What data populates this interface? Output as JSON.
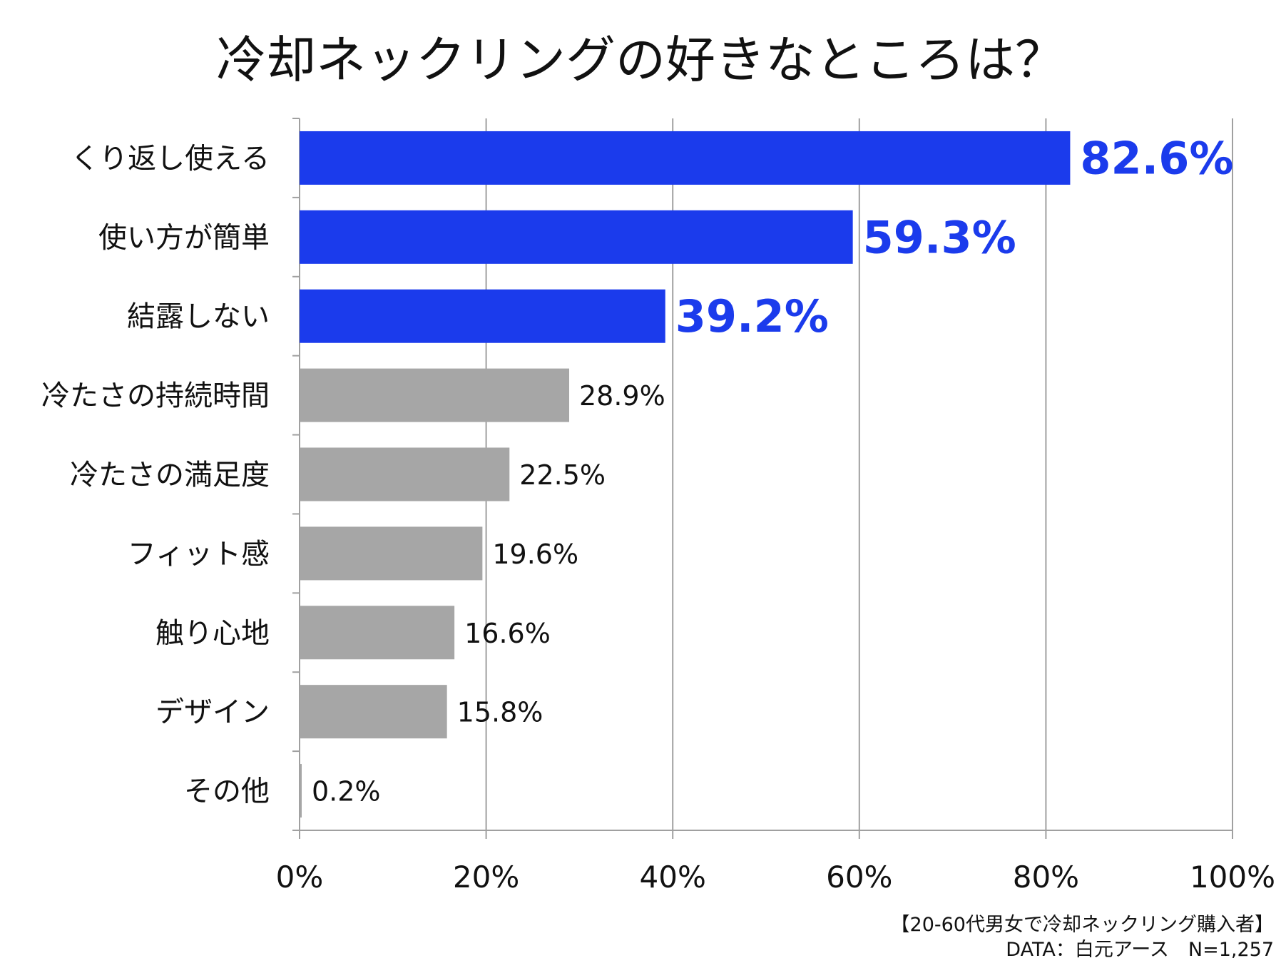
{
  "chart_data": {
    "type": "bar",
    "orientation": "horizontal",
    "title": "冷却ネックリングの好きなところは？",
    "categories": [
      "くり返し使える",
      "使い方が簡単",
      "結露しない",
      "冷たさの持続時間",
      "冷たさの満足度",
      "フィット感",
      "触り心地",
      "デザイン",
      "その他"
    ],
    "values": [
      82.6,
      59.3,
      39.2,
      28.9,
      22.5,
      19.6,
      16.6,
      15.8,
      0.2
    ],
    "value_labels": [
      "82.6%",
      "59.3%",
      "39.2%",
      "28.9%",
      "22.5%",
      "19.6%",
      "16.6%",
      "15.8%",
      "0.2%"
    ],
    "highlight": [
      true,
      true,
      true,
      false,
      false,
      false,
      false,
      false,
      false
    ],
    "xlim": [
      0,
      100
    ],
    "xticks": [
      0,
      20,
      40,
      60,
      80,
      100
    ],
    "xtick_labels": [
      "0%",
      "20%",
      "40%",
      "60%",
      "80%",
      "100%"
    ],
    "grid": true,
    "xlabel": "",
    "ylabel": "",
    "colors": {
      "highlight": "#1b3bec",
      "normal": "#a6a6a6",
      "grid": "#a0a0a0"
    }
  },
  "source": {
    "line1": "【20-60代男女で冷却ネックリング購入者】",
    "line2": "DATA：白元アース　N=1,257"
  }
}
